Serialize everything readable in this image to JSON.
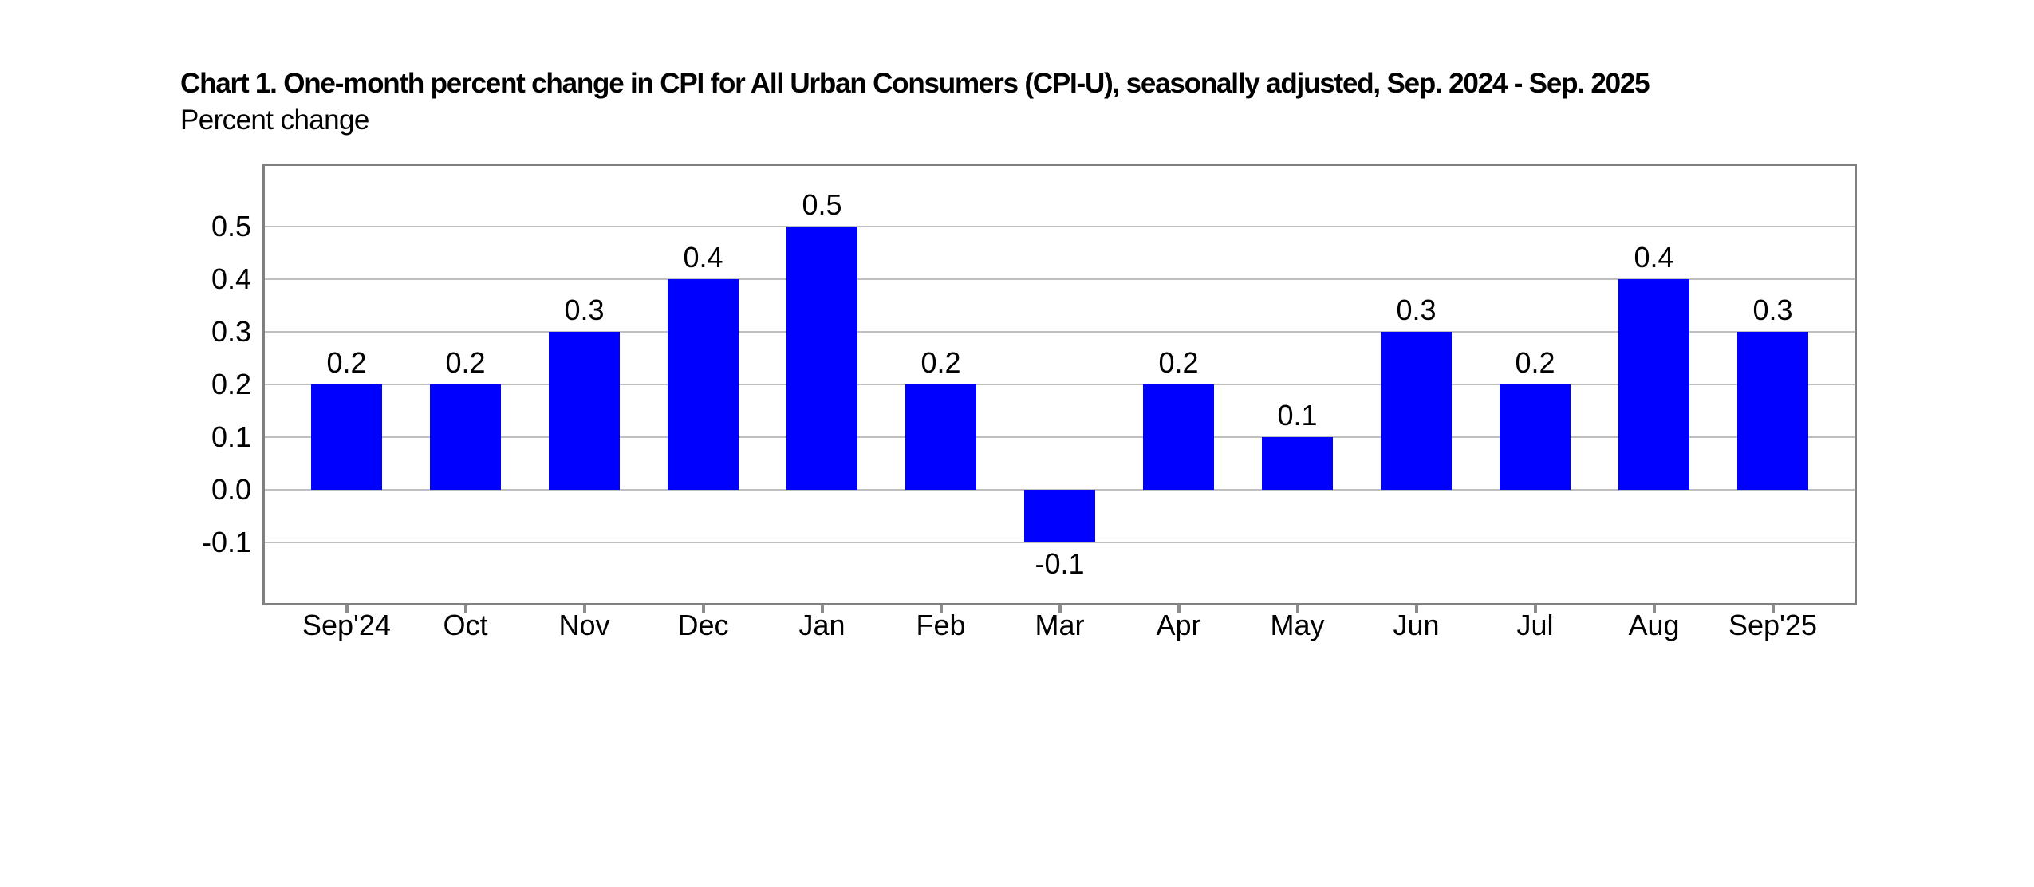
{
  "chart_data": {
    "type": "bar",
    "title": "Chart 1. One-month percent change in CPI for All Urban Consumers (CPI-U), seasonally adjusted, Sep. 2024 - Sep. 2025",
    "units_label": "Percent change",
    "categories": [
      "Sep'24",
      "Oct",
      "Nov",
      "Dec",
      "Jan",
      "Feb",
      "Mar",
      "Apr",
      "May",
      "Jun",
      "Jul",
      "Aug",
      "Sep'25"
    ],
    "values": [
      0.2,
      0.2,
      0.3,
      0.4,
      0.5,
      0.2,
      -0.1,
      0.2,
      0.1,
      0.3,
      0.2,
      0.4,
      0.3
    ],
    "value_labels": [
      "0.2",
      "0.2",
      "0.3",
      "0.4",
      "0.5",
      "0.2",
      "-0.1",
      "0.2",
      "0.1",
      "0.3",
      "0.2",
      "0.4",
      "0.3"
    ],
    "xlabel": "",
    "ylabel": "Percent change",
    "y_tick_values": [
      0.5,
      0.4,
      0.3,
      0.2,
      0.1,
      0.0,
      -0.1
    ],
    "y_tick_labels": [
      "0.5",
      "0.4",
      "0.3",
      "0.2",
      "0.1",
      "0.0",
      "-0.1"
    ],
    "ylim": [
      -0.215,
      0.615
    ],
    "grid": true,
    "legend": "none",
    "colors": {
      "bar": "#0000fe",
      "gridline": "#bfbfbf",
      "plot_border": "#808080",
      "tick": "#8c8c8c",
      "text": "#000000",
      "background": "#ffffff"
    }
  }
}
